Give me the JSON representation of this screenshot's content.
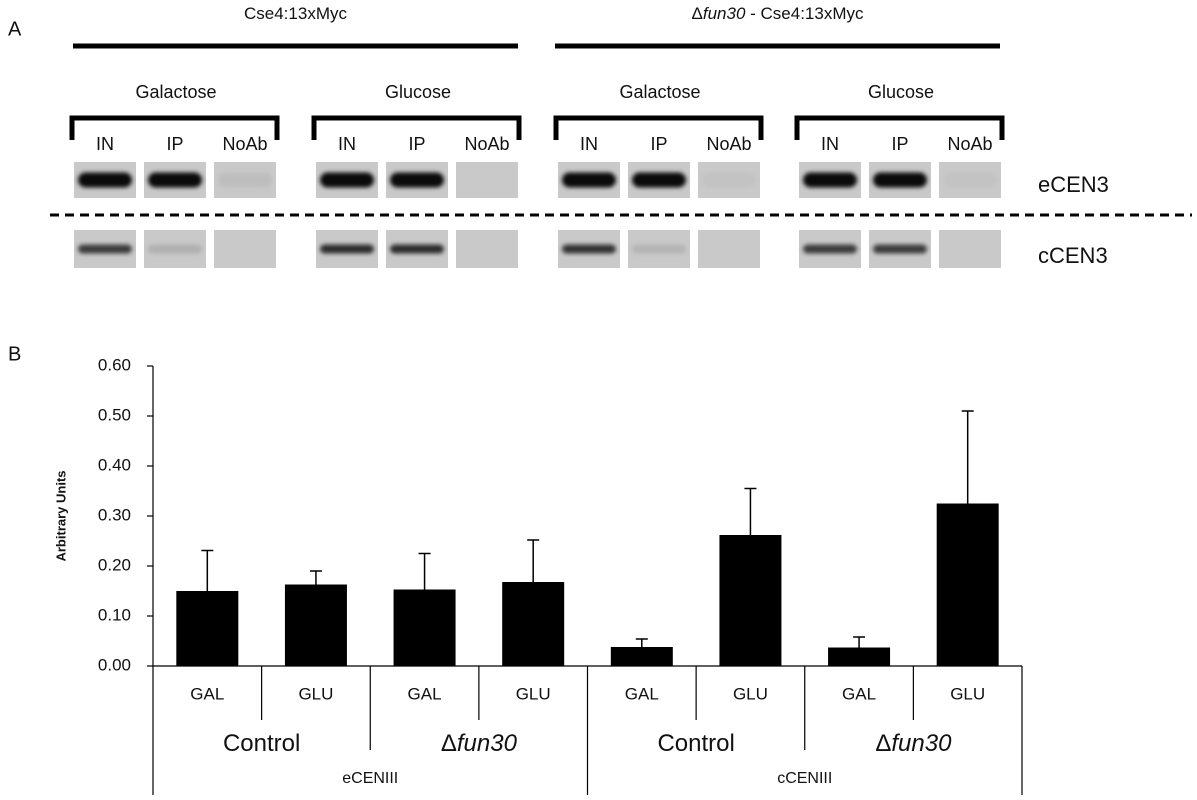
{
  "panel_a": {
    "label": "A",
    "strains": [
      {
        "parts": [
          {
            "text": "Cse4:13xMyc"
          }
        ]
      },
      {
        "parts": [
          {
            "text": "Δ"
          },
          {
            "text": "fun30",
            "italic": true
          },
          {
            "text": " - Cse4:13xMyc"
          }
        ]
      }
    ],
    "conditions": [
      "Galactose",
      "Glucose",
      "Galactose",
      "Glucose"
    ],
    "lanes": [
      "IN",
      "IP",
      "NoAb"
    ],
    "rows": [
      "eCEN3",
      "cCEN3"
    ]
  },
  "chart_data": {
    "type": "bar",
    "panel_label": "B",
    "y_label": "Arbitrary Units",
    "categories": [
      "GAL",
      "GLU",
      "GAL",
      "GLU",
      "GAL",
      "GLU",
      "GAL",
      "GLU"
    ],
    "subgroups": [
      {
        "parts": [
          {
            "text": "Control"
          }
        ]
      },
      {
        "parts": [
          {
            "text": "Δ"
          },
          {
            "text": "fun30",
            "italic": true
          }
        ]
      },
      {
        "parts": [
          {
            "text": "Control"
          }
        ]
      },
      {
        "parts": [
          {
            "text": "Δ"
          },
          {
            "text": "fun30",
            "italic": true
          }
        ]
      }
    ],
    "groups": [
      "eCENIII",
      "cCENIII"
    ],
    "values": [
      0.15,
      0.163,
      0.153,
      0.168,
      0.038,
      0.262,
      0.037,
      0.325
    ],
    "errors": [
      0.081,
      0.027,
      0.072,
      0.084,
      0.016,
      0.093,
      0.021,
      0.185
    ],
    "color": "#000000",
    "ylim": [
      0,
      0.6
    ],
    "yticks": [
      {
        "value": 0,
        "label": "0.00"
      },
      {
        "value": 0.1,
        "label": "0.10"
      },
      {
        "value": 0.2,
        "label": "0.20"
      },
      {
        "value": 0.3,
        "label": "0.30"
      },
      {
        "value": 0.4,
        "label": "0.40"
      },
      {
        "value": 0.5,
        "label": "0.50"
      },
      {
        "value": 0.6,
        "label": "0.60"
      }
    ],
    "grid": false
  }
}
